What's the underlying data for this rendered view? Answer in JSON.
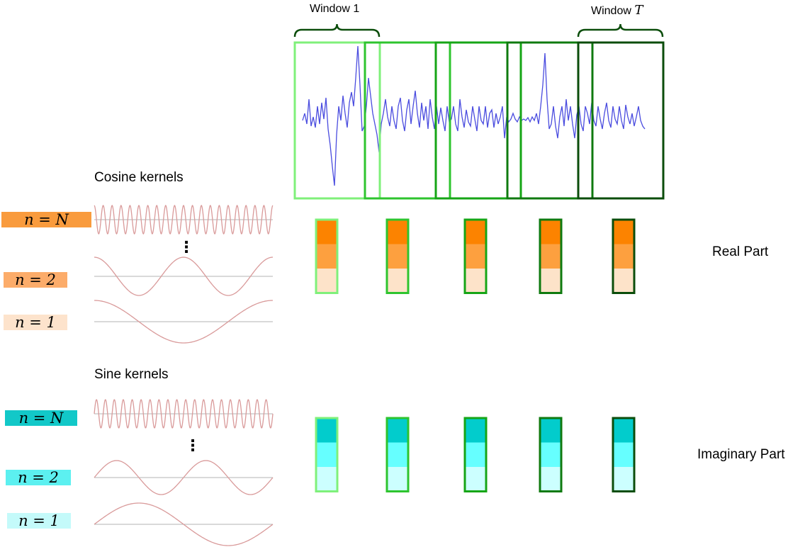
{
  "window_labels": {
    "first": "Window 1",
    "last": "Window",
    "last_symbol": "T"
  },
  "sections": {
    "cosine": {
      "title": "Cosine kernels",
      "output_label": "Real Part"
    },
    "sine": {
      "title": "Sine kernels",
      "output_label": "Imaginary Part"
    }
  },
  "kernel_labels": {
    "cosine": [
      {
        "text": "n = N",
        "color": "#f99b3d"
      },
      {
        "text": "n = 2",
        "color": "#fcac6a"
      },
      {
        "text": "n = 1",
        "color": "#fde3cc"
      }
    ],
    "sine": [
      {
        "text": "n = N",
        "color": "#12c8c8"
      },
      {
        "text": "n = 2",
        "color": "#5cf0f0"
      },
      {
        "text": "n = 1",
        "color": "#c4fafa"
      }
    ]
  },
  "ellipsis": "⋮",
  "colors": {
    "signal": "#4a4cdf",
    "kernel_wave": "#d99a9a",
    "window_borders": [
      "#7ff07a",
      "#2ec42e",
      "#16a516",
      "#0f7a0f",
      "#0b4d0b"
    ],
    "real_cells": [
      "#fc8300",
      "#fda03f",
      "#fde3c9"
    ],
    "imag_cells": [
      "#02cccc",
      "#66ffff",
      "#ccffff"
    ]
  }
}
